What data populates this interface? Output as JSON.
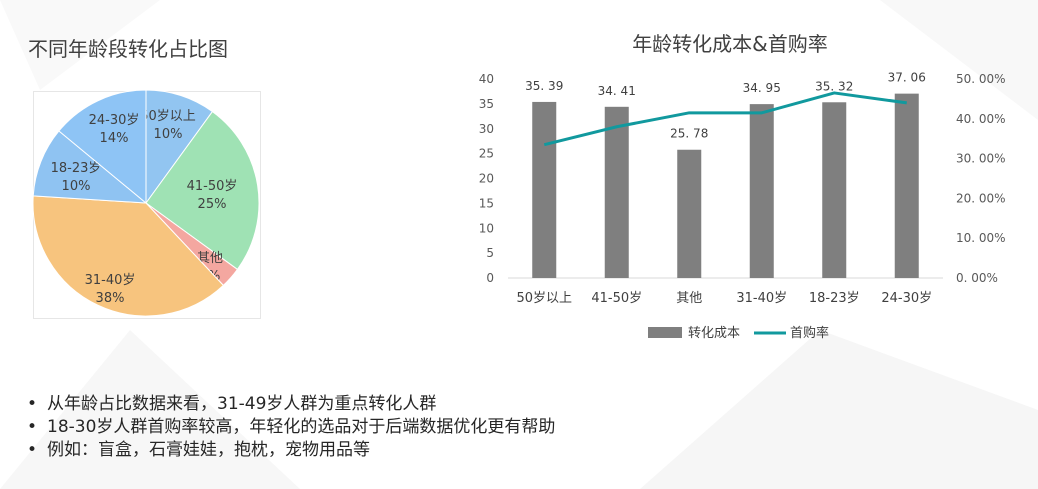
{
  "pie_title": "不同年龄段转化占比图",
  "combo_title": "年龄转化成本&首购率",
  "colors": {
    "bar": "#7f7f7f",
    "line": "#11999e",
    "pie": [
      "#92c5f1",
      "#9fe2b4",
      "#f4a7a0",
      "#f7c47e",
      "#8fc3f2",
      "#8ec4f5"
    ]
  },
  "chart_data": [
    {
      "type": "pie",
      "title": "不同年龄段转化占比图",
      "slices": [
        {
          "label": "50岁以上",
          "pct_label": "10%",
          "value": 10
        },
        {
          "label": "41-50岁",
          "pct_label": "25%",
          "value": 25
        },
        {
          "label": "其他",
          "pct_label": "3%",
          "value": 3
        },
        {
          "label": "31-40岁",
          "pct_label": "38%",
          "value": 38
        },
        {
          "label": "18-23岁",
          "pct_label": "10%",
          "value": 10
        },
        {
          "label": "24-30岁",
          "pct_label": "14%",
          "value": 14
        }
      ]
    },
    {
      "type": "bar",
      "title": "年龄转化成本&首购率",
      "categories": [
        "50岁以上",
        "41-50岁",
        "其他",
        "31-40岁",
        "18-23岁",
        "24-30岁"
      ],
      "series": [
        {
          "name": "转化成本",
          "type": "bar",
          "axis": "left",
          "values": [
            35.39,
            34.41,
            25.78,
            34.95,
            35.32,
            37.06
          ],
          "labels": [
            "35. 39",
            "34. 41",
            "25. 78",
            "34. 95",
            "35. 32",
            "37. 06"
          ]
        },
        {
          "name": "首购率",
          "type": "line",
          "axis": "right",
          "values": [
            33.5,
            38.0,
            41.5,
            41.5,
            46.5,
            44.0
          ]
        }
      ],
      "y_left": {
        "range": [
          0,
          40
        ],
        "ticks": [
          "0",
          "5",
          "10",
          "15",
          "20",
          "25",
          "30",
          "35",
          "40"
        ]
      },
      "y_right": {
        "range": [
          0,
          50
        ],
        "ticks": [
          "0. 00%",
          "10. 00%",
          "20. 00%",
          "30. 00%",
          "40. 00%",
          "50. 00%"
        ]
      },
      "legend_position": "bottom",
      "grid": false
    }
  ],
  "bullets": [
    "从年龄占比数据来看，31-49岁人群为重点转化人群",
    "18-30岁人群首购率较高，年轻化的选品对于后端数据优化更有帮助",
    "例如：盲盒，石膏娃娃，抱枕，宠物用品等"
  ],
  "bullet_symbol": "•"
}
